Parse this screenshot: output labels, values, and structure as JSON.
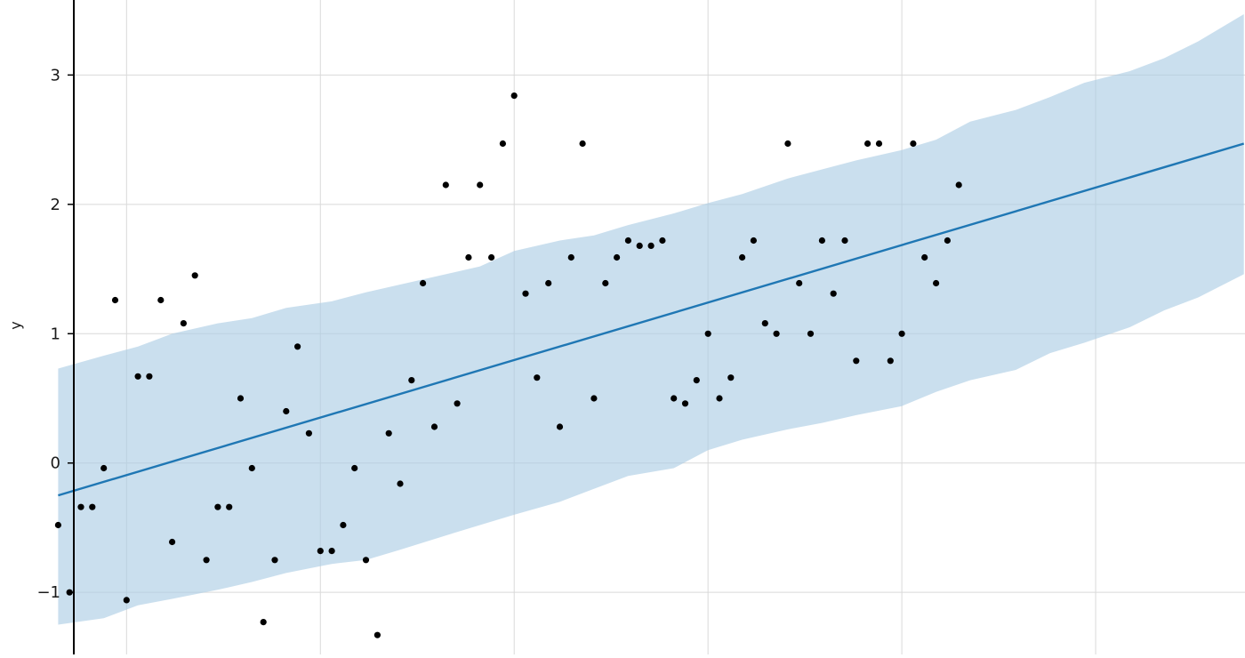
{
  "chart_data": {
    "type": "line",
    "title": "",
    "xlabel": "",
    "ylabel": "y",
    "xlim": [
      -5.1,
      104.1
    ],
    "ylim": [
      -1.48,
      3.58
    ],
    "yticks": [
      -1,
      0,
      1,
      2,
      3
    ],
    "ytick_labels": [
      "−1",
      "0",
      "1",
      "2",
      "3"
    ],
    "xgrid": [
      6,
      23,
      40,
      57,
      74,
      91,
      108
    ],
    "grid": true,
    "colors": {
      "forecast": "#1f77b4",
      "interval": "#a9cce3",
      "points": "#000000",
      "grid": "#d9d9d9"
    },
    "series": [
      {
        "kind": "trend",
        "x": [
          0,
          104
        ],
        "y": [
          -0.25,
          2.47
        ]
      },
      {
        "kind": "uncertainty-interval",
        "x": [
          0,
          4,
          7,
          10,
          14,
          17,
          20,
          24,
          27,
          30,
          34,
          37,
          40,
          44,
          47,
          50,
          54,
          57,
          60,
          64,
          67,
          70,
          74,
          77,
          80,
          84,
          87,
          90,
          94,
          97,
          100,
          104
        ],
        "upper": [
          0.73,
          0.83,
          0.9,
          1.0,
          1.08,
          1.12,
          1.2,
          1.25,
          1.32,
          1.38,
          1.46,
          1.52,
          1.64,
          1.72,
          1.76,
          1.84,
          1.93,
          2.01,
          2.08,
          2.2,
          2.27,
          2.34,
          2.42,
          2.5,
          2.64,
          2.73,
          2.83,
          2.94,
          3.03,
          3.13,
          3.26,
          3.47
        ],
        "lower": [
          -1.25,
          -1.2,
          -1.1,
          -1.05,
          -0.98,
          -0.92,
          -0.85,
          -0.78,
          -0.75,
          -0.67,
          -0.56,
          -0.48,
          -0.4,
          -0.3,
          -0.2,
          -0.1,
          -0.04,
          0.1,
          0.18,
          0.26,
          0.31,
          0.37,
          0.44,
          0.55,
          0.64,
          0.72,
          0.85,
          0.93,
          1.05,
          1.18,
          1.28,
          1.46
        ]
      },
      {
        "kind": "actual",
        "points": [
          [
            0,
            -0.48
          ],
          [
            1,
            -1.0
          ],
          [
            2,
            -0.34
          ],
          [
            3,
            -0.34
          ],
          [
            4,
            -0.04
          ],
          [
            5,
            1.26
          ],
          [
            6,
            -1.06
          ],
          [
            7,
            0.67
          ],
          [
            8,
            0.67
          ],
          [
            9,
            1.26
          ],
          [
            10,
            -0.61
          ],
          [
            11,
            1.08
          ],
          [
            12,
            1.45
          ],
          [
            13,
            -0.75
          ],
          [
            14,
            -0.34
          ],
          [
            15,
            -0.34
          ],
          [
            16,
            0.5
          ],
          [
            17,
            -0.04
          ],
          [
            18,
            -1.23
          ],
          [
            19,
            -0.75
          ],
          [
            20,
            0.4
          ],
          [
            21,
            0.9
          ],
          [
            22,
            0.23
          ],
          [
            23,
            -0.68
          ],
          [
            24,
            -0.68
          ],
          [
            25,
            -0.48
          ],
          [
            26,
            -0.04
          ],
          [
            27,
            -0.75
          ],
          [
            28,
            -1.33
          ],
          [
            29,
            0.23
          ],
          [
            30,
            -0.16
          ],
          [
            31,
            0.64
          ],
          [
            32,
            1.39
          ],
          [
            33,
            0.28
          ],
          [
            34,
            2.15
          ],
          [
            35,
            0.46
          ],
          [
            36,
            1.59
          ],
          [
            37,
            2.15
          ],
          [
            38,
            1.59
          ],
          [
            39,
            2.47
          ],
          [
            40,
            2.84
          ],
          [
            41,
            1.31
          ],
          [
            42,
            0.66
          ],
          [
            43,
            1.39
          ],
          [
            44,
            0.28
          ],
          [
            45,
            1.59
          ],
          [
            46,
            2.47
          ],
          [
            47,
            0.5
          ],
          [
            48,
            1.39
          ],
          [
            49,
            1.59
          ],
          [
            50,
            1.72
          ],
          [
            51,
            1.68
          ],
          [
            52,
            1.68
          ],
          [
            53,
            1.72
          ],
          [
            54,
            0.5
          ],
          [
            55,
            0.46
          ],
          [
            56,
            0.64
          ],
          [
            57,
            1.0
          ],
          [
            58,
            0.5
          ],
          [
            59,
            0.66
          ],
          [
            60,
            1.59
          ],
          [
            61,
            1.72
          ],
          [
            62,
            1.08
          ],
          [
            63,
            1.0
          ],
          [
            64,
            2.47
          ],
          [
            65,
            1.39
          ],
          [
            66,
            1.0
          ],
          [
            67,
            1.72
          ],
          [
            68,
            1.31
          ],
          [
            69,
            1.72
          ],
          [
            70,
            0.79
          ],
          [
            71,
            2.47
          ],
          [
            72,
            2.47
          ],
          [
            73,
            0.79
          ],
          [
            74,
            1.0
          ],
          [
            75,
            2.47
          ],
          [
            76,
            1.59
          ],
          [
            77,
            1.39
          ],
          [
            78,
            1.72
          ],
          [
            79,
            2.15
          ]
        ]
      }
    ]
  }
}
